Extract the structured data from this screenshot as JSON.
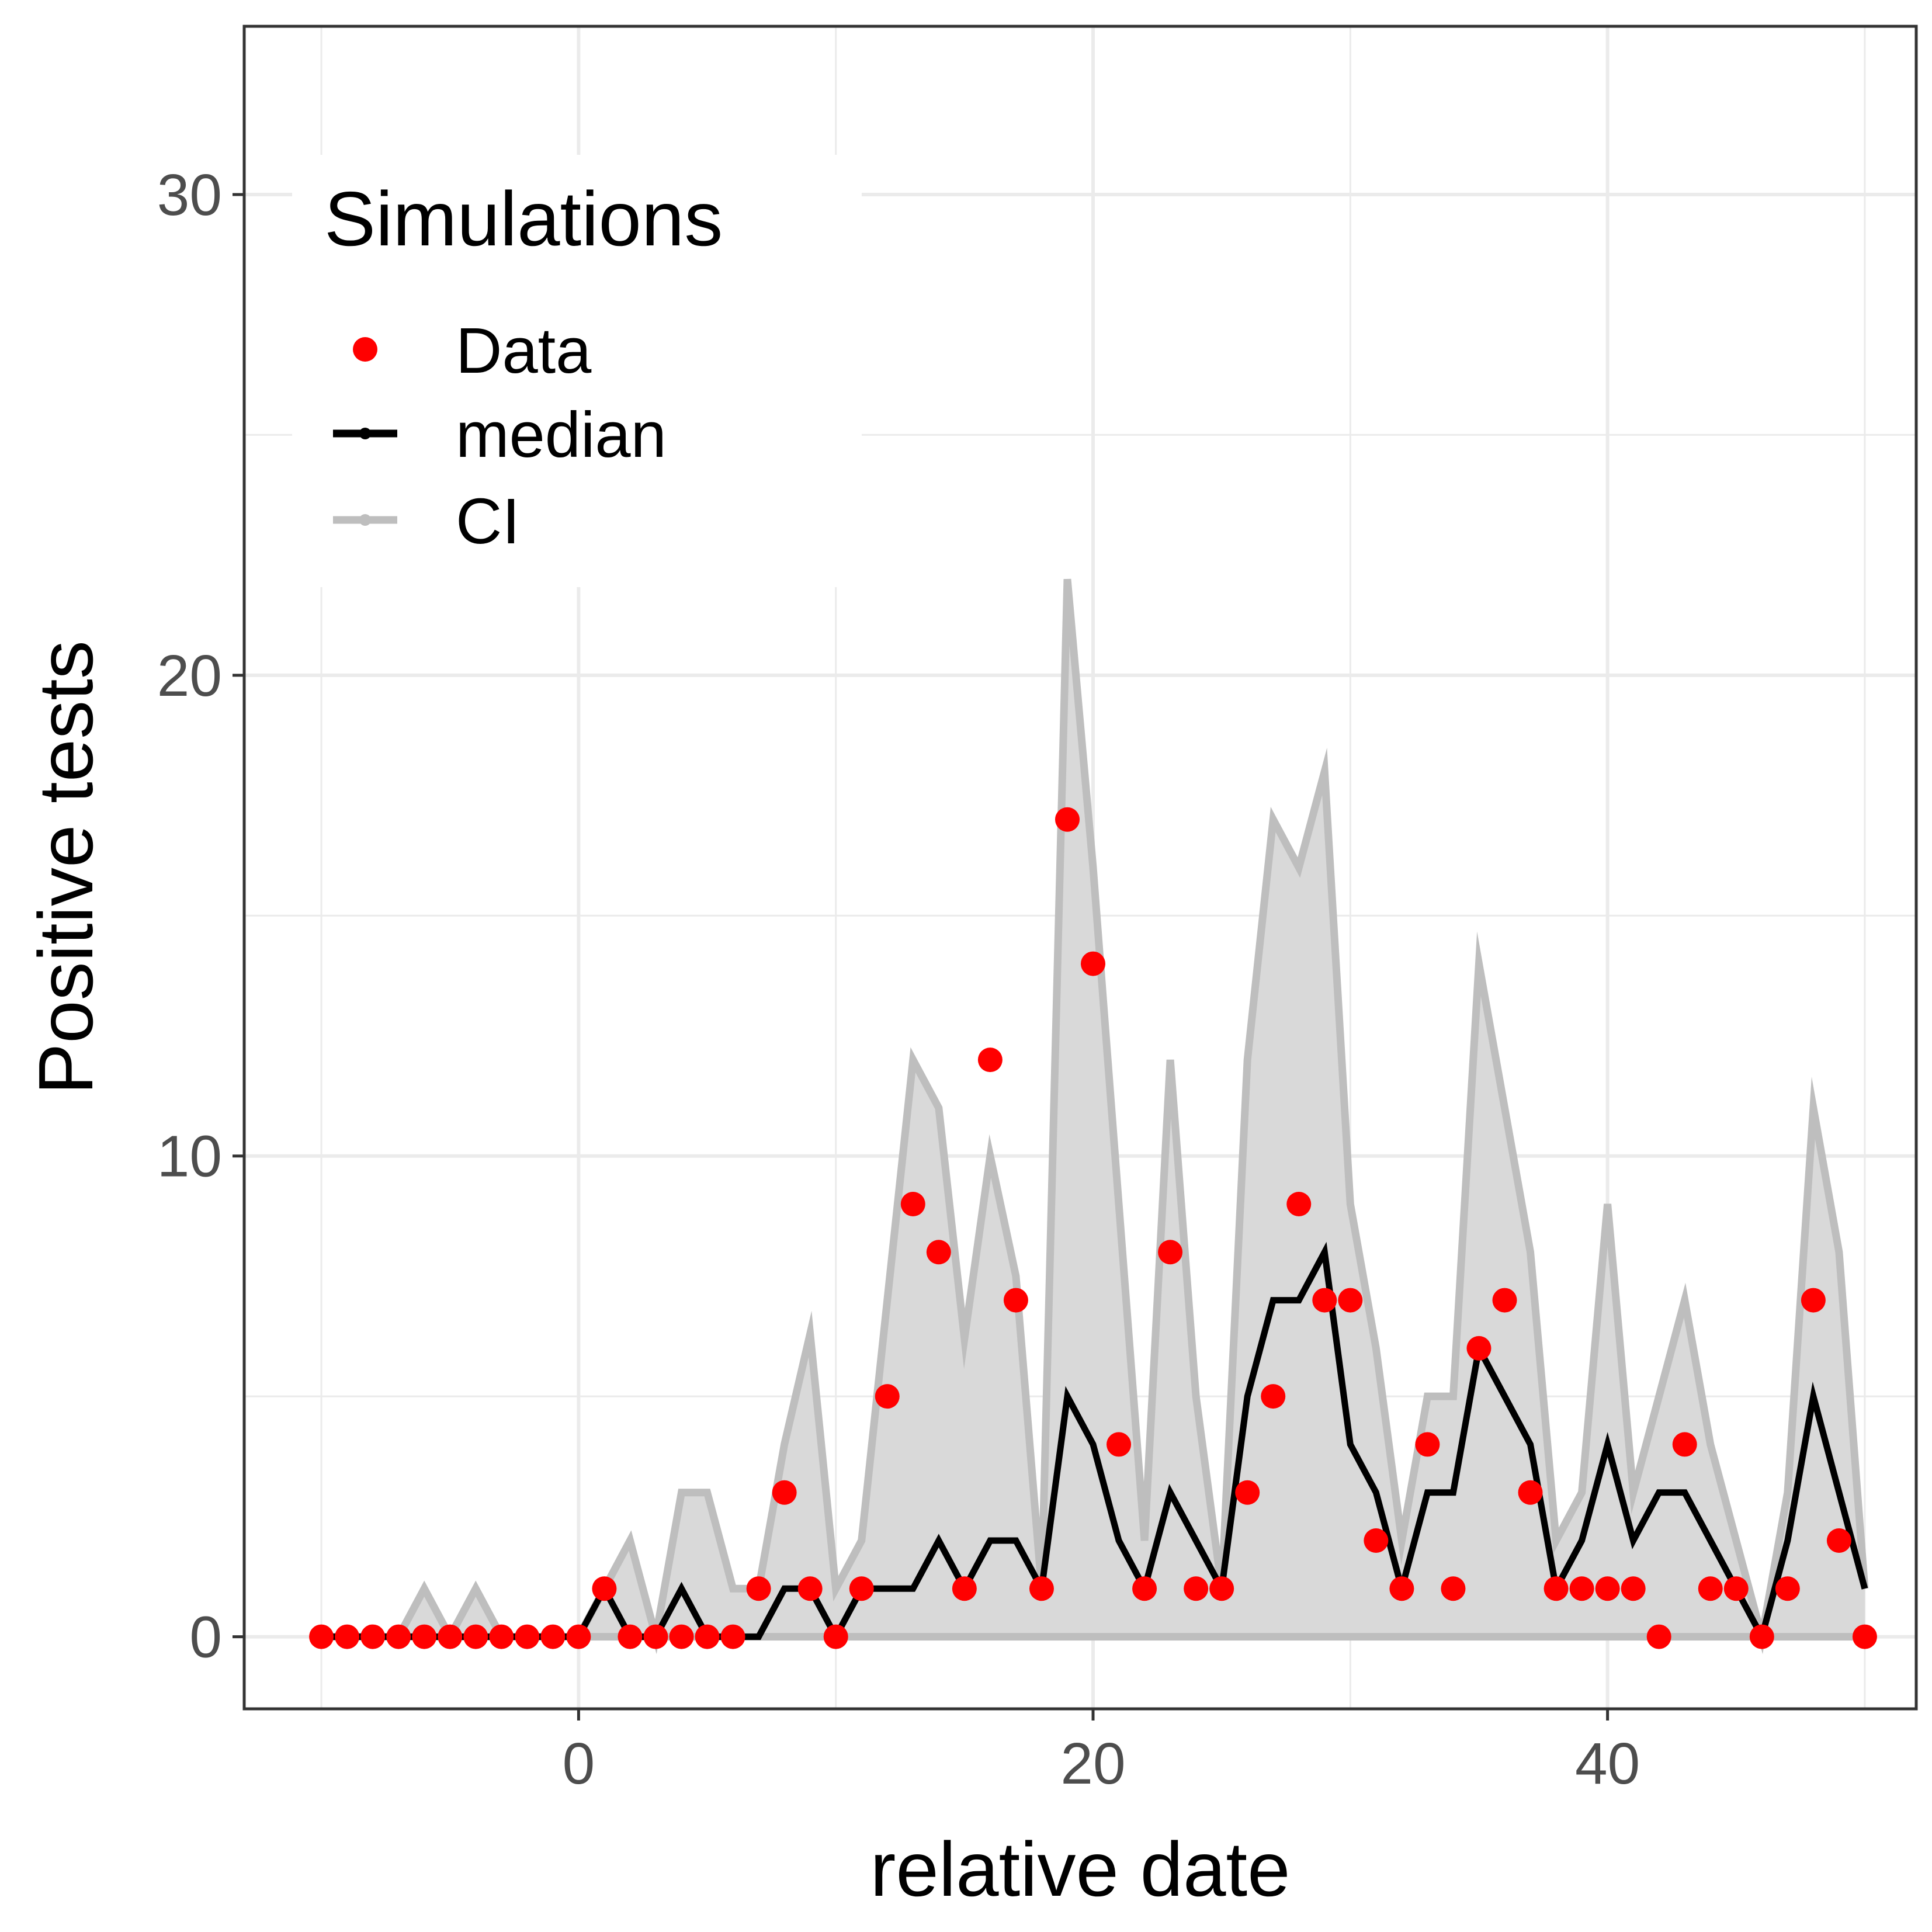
{
  "chart_data": {
    "type": "line",
    "xlabel": "relative date",
    "ylabel": "Positive tests",
    "xlim": [
      -13,
      52
    ],
    "ylim": [
      -1.5,
      33.5
    ],
    "x_ticks": [
      0,
      20,
      40
    ],
    "y_ticks": [
      0,
      10,
      20,
      30
    ],
    "grid": true,
    "legend": {
      "title": "Simulations",
      "position": "top-left",
      "entries": [
        "Data",
        "median",
        "CI"
      ]
    },
    "colors": {
      "data": "#ff0000",
      "median": "#000000",
      "ci_line": "#bebebe",
      "ci_fill": "#d9d9d9",
      "grid": "#ebebeb",
      "panel_border": "#333333"
    },
    "x": [
      -10,
      -9,
      -8,
      -7,
      -6,
      -5,
      -4,
      -3,
      -2,
      -1,
      0,
      1,
      2,
      3,
      4,
      5,
      6,
      7,
      8,
      9,
      10,
      11,
      12,
      13,
      14,
      15,
      16,
      17,
      18,
      19,
      20,
      21,
      22,
      23,
      24,
      25,
      26,
      27,
      28,
      29,
      30,
      31,
      32,
      33,
      34,
      35,
      36,
      37,
      38,
      39,
      40,
      41,
      42,
      43,
      44,
      45,
      46,
      47,
      48,
      49,
      50
    ],
    "series": [
      {
        "name": "Data",
        "values": [
          0,
          0,
          0,
          0,
          0,
          0,
          0,
          0,
          0,
          0,
          0,
          1,
          0,
          0,
          0,
          0,
          0,
          1,
          3,
          1,
          0,
          1,
          5,
          9,
          8,
          1,
          12,
          7,
          1,
          17,
          14,
          4,
          1,
          8,
          1,
          1,
          3,
          5,
          9,
          7,
          7,
          2,
          1,
          4,
          1,
          6,
          7,
          3,
          1,
          1,
          1,
          1,
          0,
          4,
          1,
          1,
          0,
          1,
          7,
          2,
          0
        ]
      },
      {
        "name": "median",
        "values": [
          0,
          0,
          0,
          0,
          0,
          0,
          0,
          0,
          0,
          0,
          0,
          1,
          0,
          0,
          1,
          0,
          0,
          0,
          1,
          1,
          0,
          1,
          1,
          1,
          2,
          1,
          2,
          2,
          1,
          5,
          4,
          2,
          1,
          3,
          2,
          1,
          5,
          7,
          7,
          8,
          4,
          3,
          1,
          3,
          3,
          6,
          5,
          4,
          1,
          2,
          4,
          2,
          3,
          3,
          2,
          1,
          0,
          2,
          5,
          3,
          1
        ]
      },
      {
        "name": "CI",
        "values": [
          0,
          0,
          0,
          0,
          1,
          0,
          1,
          0,
          0,
          0,
          0,
          1,
          2,
          0,
          3,
          3,
          1,
          1,
          4,
          6.3,
          1,
          2,
          7,
          12,
          11,
          6.2,
          10,
          7.5,
          1,
          22,
          16,
          9,
          2,
          12,
          5,
          1,
          12,
          17,
          16,
          18,
          9,
          6,
          2,
          5,
          5,
          14,
          11,
          8,
          2,
          3,
          9,
          3,
          5,
          7,
          4,
          2,
          0,
          3,
          11,
          8,
          1
        ]
      }
    ]
  }
}
